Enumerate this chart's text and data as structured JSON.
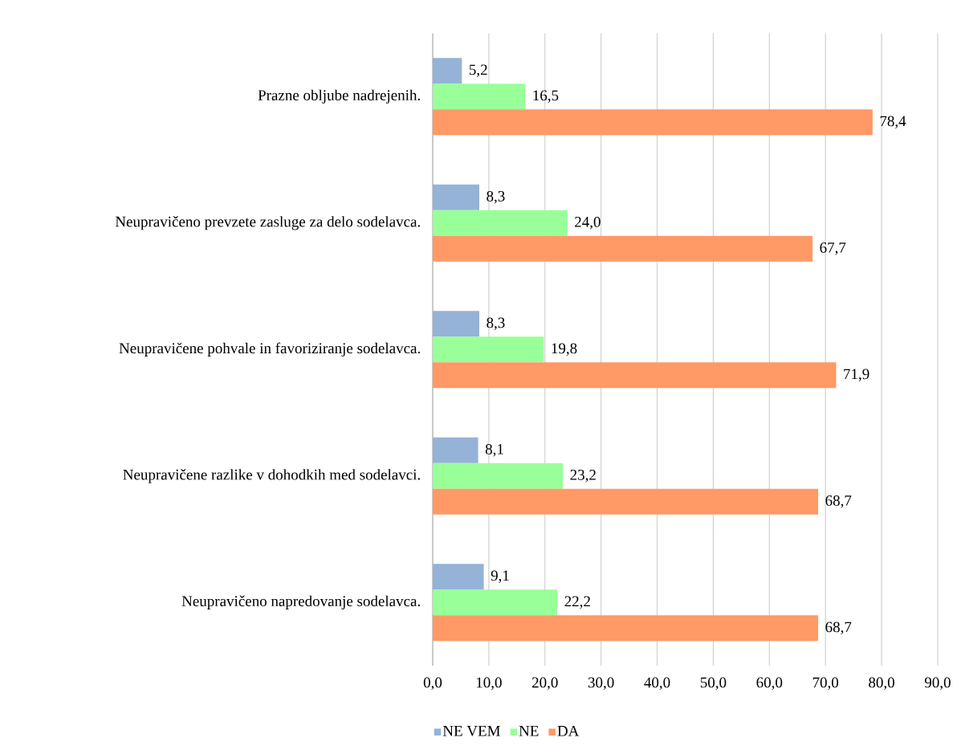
{
  "chart_data": {
    "type": "bar",
    "orientation": "horizontal",
    "categories": [
      "Prazne obljube nadrejenih.",
      "Neupravičeno prevzete zasluge za delo sodelavca.",
      "Neupravičene pohvale in favoriziranje sodelavca.",
      "Neupravičene razlike v dohodkih med sodelavci.",
      "Neupravičeno napredovanje sodelavca."
    ],
    "series": [
      {
        "name": "NE VEM",
        "color": "#95b3d7",
        "values": [
          5.2,
          8.3,
          8.3,
          8.1,
          9.1
        ],
        "value_labels": [
          "5,2",
          "8,3",
          "8,3",
          "8,1",
          "9,1"
        ]
      },
      {
        "name": "NE",
        "color": "#99ff99",
        "values": [
          16.5,
          24.0,
          19.8,
          23.2,
          22.2
        ],
        "value_labels": [
          "16,5",
          "24,0",
          "19,8",
          "23,2",
          "22,2"
        ]
      },
      {
        "name": "DA",
        "color": "#ff9966",
        "values": [
          78.4,
          67.7,
          71.9,
          68.7,
          68.7
        ],
        "value_labels": [
          "78,4",
          "67,7",
          "71,9",
          "68,7",
          "68,7"
        ]
      }
    ],
    "xlim": [
      0,
      90
    ],
    "xticks": [
      {
        "value": 0,
        "label": "0,0"
      },
      {
        "value": 10,
        "label": "10,0"
      },
      {
        "value": 20,
        "label": "20,0"
      },
      {
        "value": 30,
        "label": "30,0"
      },
      {
        "value": 40,
        "label": "40,0"
      },
      {
        "value": 50,
        "label": "50,0"
      },
      {
        "value": 60,
        "label": "60,0"
      },
      {
        "value": 70,
        "label": "70,0"
      },
      {
        "value": 80,
        "label": "80,0"
      },
      {
        "value": 90,
        "label": "90,0"
      }
    ],
    "grid": "x",
    "legend": "bottom"
  }
}
